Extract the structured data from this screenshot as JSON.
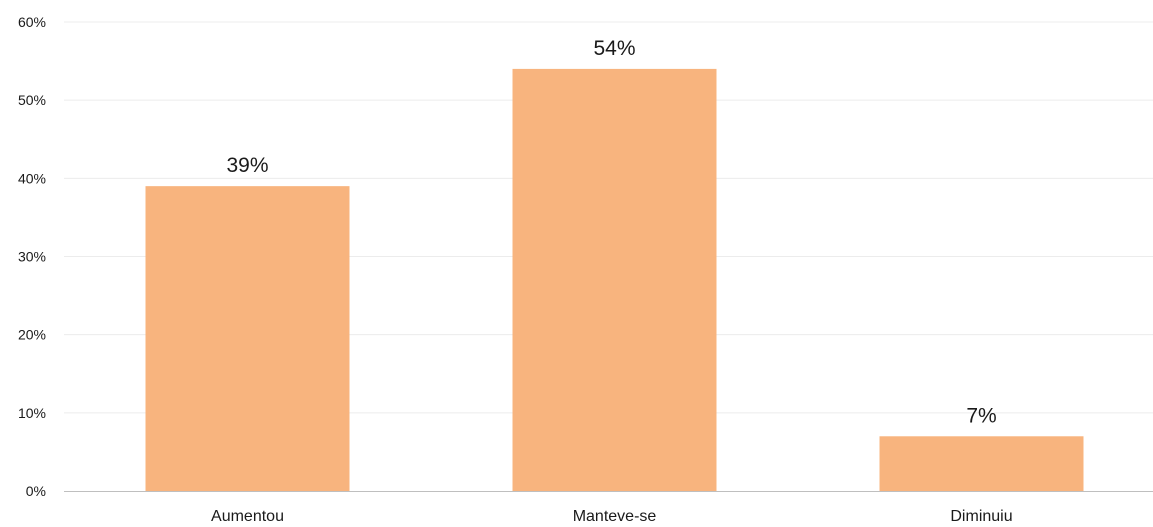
{
  "chart_data": {
    "type": "bar",
    "title": "",
    "xlabel": "",
    "ylabel": "",
    "categories": [
      "Aumentou",
      "Manteve-se",
      "Diminuiu"
    ],
    "values": [
      39,
      54,
      7
    ],
    "value_labels": [
      "39%",
      "54%",
      "7%"
    ],
    "ylim": [
      0,
      60
    ],
    "yticks": [
      0,
      10,
      20,
      30,
      40,
      50,
      60
    ],
    "ytick_labels": [
      "0%",
      "10%",
      "20%",
      "30%",
      "40%",
      "50%",
      "60%"
    ],
    "grid": true,
    "legend": "none",
    "colors": {
      "bar": "#F8B47E",
      "grid": "#ECECEC",
      "axis": "#BFBFBF",
      "text": "#1A1A1A"
    }
  }
}
